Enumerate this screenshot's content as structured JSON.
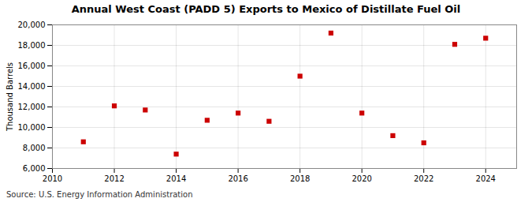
{
  "chart_data": {
    "type": "scatter",
    "title": "Annual West Coast (PADD 5) Exports to Mexico of Distillate Fuel Oil",
    "ylabel": "Thousand Barrels",
    "annotations": [
      "Source: U.S. Energy Information Administration"
    ],
    "x": [
      2011,
      2012,
      2013,
      2014,
      2015,
      2016,
      2017,
      2018,
      2019,
      2020,
      2021,
      2022,
      2023,
      2024
    ],
    "values": [
      8600,
      12100,
      11700,
      7400,
      10700,
      11400,
      10600,
      15000,
      19200,
      11400,
      9200,
      8500,
      18100,
      18700
    ],
    "color": "#cc0000",
    "marker": "square",
    "xlim": [
      2010,
      2025
    ],
    "xticks": [
      2010,
      2012,
      2014,
      2016,
      2018,
      2020,
      2022,
      2024
    ],
    "ylim": [
      6000,
      20000
    ],
    "yticks": [
      {
        "value": 6000,
        "label": "6,000"
      },
      {
        "value": 8000,
        "label": "8,000"
      },
      {
        "value": 10000,
        "label": "10,000"
      },
      {
        "value": 12000,
        "label": "12,000"
      },
      {
        "value": 14000,
        "label": "14,000"
      },
      {
        "value": 16000,
        "label": "16,000"
      },
      {
        "value": 18000,
        "label": "18,000"
      },
      {
        "value": 20000,
        "label": "20,000"
      }
    ],
    "grid": true
  }
}
